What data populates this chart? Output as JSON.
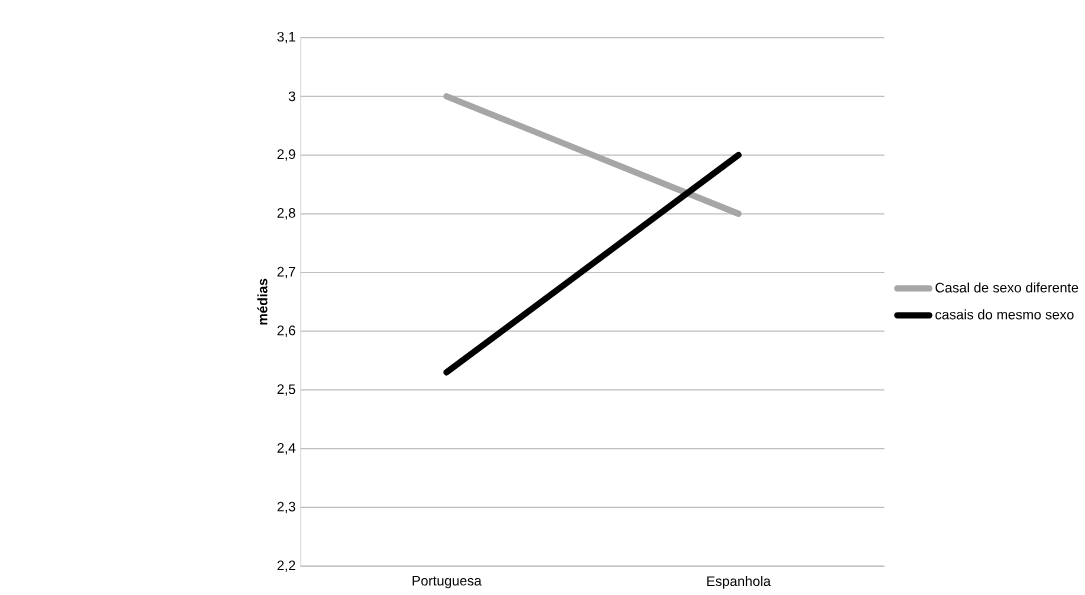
{
  "chart_data": {
    "type": "line",
    "ylabel": "médias",
    "categories": [
      "Portuguesa",
      "Espanhola"
    ],
    "series": [
      {
        "name": "Casal de sexo diferente",
        "color": "#a6a6a6",
        "values": [
          3.0,
          2.8
        ]
      },
      {
        "name": "casais do mesmo sexo",
        "color": "#000000",
        "values": [
          2.53,
          2.9
        ]
      }
    ],
    "ylim": [
      2.2,
      3.1
    ],
    "yticks": [
      {
        "value": 2.2,
        "label": "2,2"
      },
      {
        "value": 2.3,
        "label": "2,3"
      },
      {
        "value": 2.4,
        "label": "2,4"
      },
      {
        "value": 2.5,
        "label": "2,5"
      },
      {
        "value": 2.6,
        "label": "2,6"
      },
      {
        "value": 2.7,
        "label": "2,7"
      },
      {
        "value": 2.8,
        "label": "2,8"
      },
      {
        "value": 2.9,
        "label": "2,9"
      },
      {
        "value": 3.0,
        "label": "3"
      },
      {
        "value": 3.1,
        "label": "3,1"
      }
    ],
    "grid": "y",
    "legend": "right"
  }
}
